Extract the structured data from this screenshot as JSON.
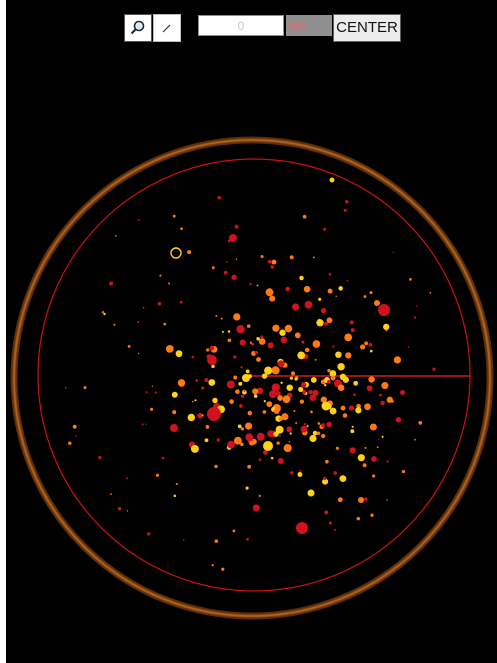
{
  "toolbar": {
    "zoom_tool_icon": "magnifier-icon",
    "line_tool_icon": "line-tool-icon",
    "measurement_value": "0",
    "unit": "um",
    "center_label": "CENTER"
  },
  "colors": {
    "background": "#000000",
    "dish_ring": "#b9621d",
    "inner_circle": "#d40d0d",
    "particle_hot": "#ffd11a",
    "particle_warm": "#ff7a12",
    "particle_red": "#d0121e"
  }
}
